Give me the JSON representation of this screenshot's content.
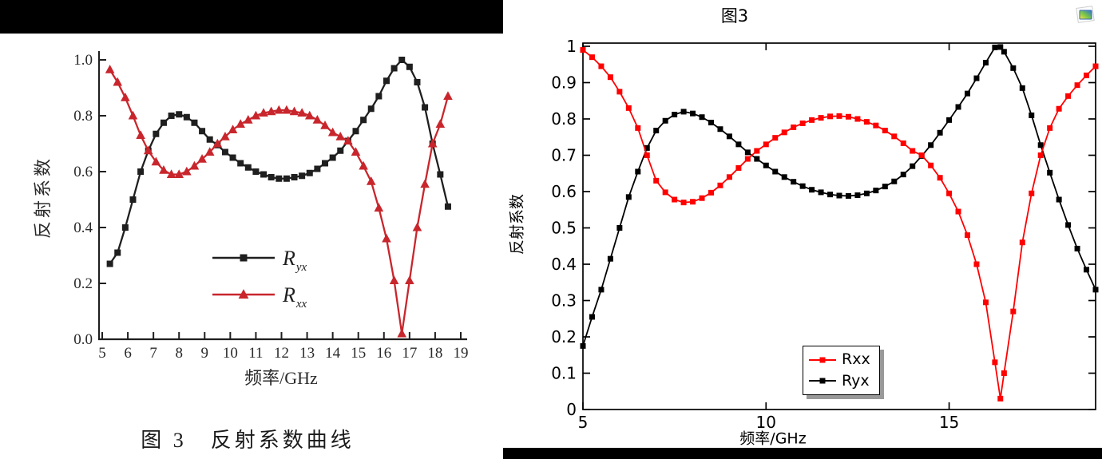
{
  "page": {
    "background": "#ffffff",
    "left_topbar_color": "#000000",
    "right_bottombar_color": "#000000"
  },
  "right_header": {
    "title": "图3",
    "corner_icon": "image-snapshot-icon"
  },
  "chart_data": [
    {
      "id": "paper-figure",
      "type": "line",
      "caption": "图 3　反射系数曲线",
      "xlabel": "频率/GHz",
      "ylabel": "反射系数",
      "xlim": [
        5,
        19
      ],
      "ylim": [
        0,
        1
      ],
      "grid": false,
      "legend_position": "inside-lower-center",
      "xticks": [
        5,
        6,
        7,
        8,
        9,
        10,
        11,
        12,
        13,
        14,
        15,
        16,
        17,
        18,
        19
      ],
      "xtick_labels": [
        "5",
        "6",
        "7",
        "8",
        "9",
        "10",
        "11",
        "12",
        "13",
        "14",
        "15",
        "16",
        "17",
        "18",
        "19"
      ],
      "yticks": [
        0,
        0.2,
        0.4,
        0.6,
        0.8,
        1.0
      ],
      "ytick_labels": [
        "0.0",
        "0.2",
        "0.4",
        "0.6",
        "0.8",
        "1.0"
      ],
      "legend": [
        {
          "text": "R",
          "sub": "yx",
          "color": "#1f1f1f",
          "marker": "square"
        },
        {
          "text": "R",
          "sub": "xx",
          "color": "#c8262c",
          "marker": "triangle"
        }
      ],
      "series": [
        {
          "name": "Ryx",
          "color": "#1f1f1f",
          "marker": "square",
          "x": [
            5.3,
            5.6,
            5.9,
            6.2,
            6.5,
            6.8,
            7.1,
            7.4,
            7.7,
            8.0,
            8.3,
            8.6,
            8.9,
            9.2,
            9.5,
            9.8,
            10.1,
            10.4,
            10.7,
            11.0,
            11.3,
            11.6,
            11.9,
            12.2,
            12.5,
            12.8,
            13.1,
            13.4,
            13.7,
            14.0,
            14.3,
            14.6,
            14.9,
            15.2,
            15.5,
            15.8,
            16.1,
            16.4,
            16.7,
            17.0,
            17.3,
            17.6,
            17.9,
            18.2,
            18.5
          ],
          "y": [
            0.27,
            0.31,
            0.4,
            0.5,
            0.6,
            0.675,
            0.735,
            0.775,
            0.8,
            0.805,
            0.795,
            0.775,
            0.745,
            0.715,
            0.695,
            0.67,
            0.65,
            0.63,
            0.615,
            0.6,
            0.59,
            0.58,
            0.575,
            0.575,
            0.58,
            0.585,
            0.595,
            0.61,
            0.63,
            0.65,
            0.675,
            0.71,
            0.745,
            0.785,
            0.825,
            0.87,
            0.925,
            0.97,
            1.0,
            0.975,
            0.92,
            0.83,
            0.7,
            0.59,
            0.475
          ]
        },
        {
          "name": "Rxx",
          "color": "#c8262c",
          "marker": "triangle",
          "x": [
            5.3,
            5.6,
            5.9,
            6.2,
            6.5,
            6.8,
            7.1,
            7.4,
            7.7,
            8.0,
            8.3,
            8.6,
            8.9,
            9.2,
            9.5,
            9.8,
            10.1,
            10.4,
            10.7,
            11.0,
            11.3,
            11.6,
            11.9,
            12.2,
            12.5,
            12.8,
            13.1,
            13.4,
            13.7,
            14.0,
            14.3,
            14.6,
            14.9,
            15.2,
            15.5,
            15.8,
            16.1,
            16.4,
            16.7,
            17.0,
            17.3,
            17.6,
            17.9,
            18.2,
            18.5
          ],
          "y": [
            0.965,
            0.92,
            0.865,
            0.8,
            0.73,
            0.675,
            0.635,
            0.605,
            0.59,
            0.59,
            0.6,
            0.62,
            0.645,
            0.67,
            0.7,
            0.725,
            0.75,
            0.77,
            0.785,
            0.8,
            0.81,
            0.815,
            0.82,
            0.82,
            0.815,
            0.81,
            0.8,
            0.785,
            0.765,
            0.74,
            0.725,
            0.71,
            0.67,
            0.62,
            0.565,
            0.47,
            0.36,
            0.21,
            0.02,
            0.21,
            0.4,
            0.555,
            0.7,
            0.77,
            0.87
          ]
        }
      ]
    },
    {
      "id": "simulation-figure",
      "type": "line",
      "title": "图3",
      "xlabel": "频率/GHz",
      "ylabel": "反射系数",
      "xlim": [
        5,
        19
      ],
      "ylim": [
        0,
        1
      ],
      "grid": false,
      "legend_position": "inside-lower-center-box",
      "xticks": [
        5,
        10,
        15
      ],
      "xtick_labels": [
        "5",
        "10",
        "15"
      ],
      "yticks": [
        0,
        0.1,
        0.2,
        0.3,
        0.4,
        0.5,
        0.6,
        0.7,
        0.8,
        0.9,
        1
      ],
      "ytick_labels": [
        "0",
        "0.1",
        "0.2",
        "0.3",
        "0.4",
        "0.5",
        "0.6",
        "0.7",
        "0.8",
        "0.9",
        "1"
      ],
      "legend": [
        {
          "text": "Rxx",
          "sub": "",
          "color": "#ff0000",
          "marker": "square"
        },
        {
          "text": "Ryx",
          "sub": "",
          "color": "#000000",
          "marker": "square"
        }
      ],
      "series": [
        {
          "name": "Ryx",
          "color": "#000000",
          "marker": "square",
          "x": [
            5,
            5.25,
            5.5,
            5.75,
            6,
            6.25,
            6.5,
            6.75,
            7,
            7.25,
            7.5,
            7.75,
            8,
            8.25,
            8.5,
            8.75,
            9,
            9.25,
            9.5,
            9.75,
            10,
            10.25,
            10.5,
            10.75,
            11,
            11.25,
            11.5,
            11.75,
            12,
            12.25,
            12.5,
            12.75,
            13,
            13.25,
            13.5,
            13.75,
            14,
            14.25,
            14.5,
            14.75,
            15,
            15.25,
            15.5,
            15.75,
            16,
            16.25,
            16.4,
            16.5,
            16.75,
            17,
            17.25,
            17.5,
            17.75,
            18,
            18.25,
            18.5,
            18.75,
            19
          ],
          "y": [
            0.175,
            0.255,
            0.33,
            0.415,
            0.5,
            0.585,
            0.655,
            0.72,
            0.768,
            0.795,
            0.812,
            0.82,
            0.815,
            0.805,
            0.79,
            0.772,
            0.752,
            0.73,
            0.708,
            0.69,
            0.672,
            0.655,
            0.64,
            0.627,
            0.615,
            0.605,
            0.598,
            0.592,
            0.589,
            0.588,
            0.59,
            0.595,
            0.603,
            0.614,
            0.628,
            0.647,
            0.67,
            0.698,
            0.728,
            0.762,
            0.797,
            0.833,
            0.87,
            0.912,
            0.955,
            0.997,
            0.998,
            0.985,
            0.94,
            0.885,
            0.81,
            0.728,
            0.652,
            0.578,
            0.508,
            0.443,
            0.385,
            0.33
          ]
        },
        {
          "name": "Rxx",
          "color": "#ff0000",
          "marker": "square",
          "x": [
            5,
            5.25,
            5.5,
            5.75,
            6,
            6.25,
            6.5,
            6.75,
            7,
            7.25,
            7.5,
            7.75,
            8,
            8.25,
            8.5,
            8.75,
            9,
            9.25,
            9.5,
            9.75,
            10,
            10.25,
            10.5,
            10.75,
            11,
            11.25,
            11.5,
            11.75,
            12,
            12.25,
            12.5,
            12.75,
            13,
            13.25,
            13.5,
            13.75,
            14,
            14.25,
            14.5,
            14.75,
            15,
            15.25,
            15.5,
            15.75,
            16,
            16.25,
            16.4,
            16.5,
            16.75,
            17,
            17.25,
            17.5,
            17.75,
            18,
            18.25,
            18.5,
            18.75,
            19
          ],
          "y": [
            0.99,
            0.97,
            0.945,
            0.915,
            0.875,
            0.83,
            0.775,
            0.7,
            0.63,
            0.598,
            0.578,
            0.57,
            0.572,
            0.582,
            0.597,
            0.617,
            0.64,
            0.665,
            0.69,
            0.712,
            0.73,
            0.748,
            0.763,
            0.777,
            0.788,
            0.797,
            0.803,
            0.807,
            0.808,
            0.806,
            0.8,
            0.792,
            0.782,
            0.768,
            0.752,
            0.733,
            0.712,
            0.7,
            0.672,
            0.638,
            0.595,
            0.545,
            0.48,
            0.4,
            0.295,
            0.13,
            0.03,
            0.1,
            0.27,
            0.46,
            0.595,
            0.7,
            0.775,
            0.828,
            0.863,
            0.893,
            0.92,
            0.945
          ]
        }
      ]
    }
  ]
}
